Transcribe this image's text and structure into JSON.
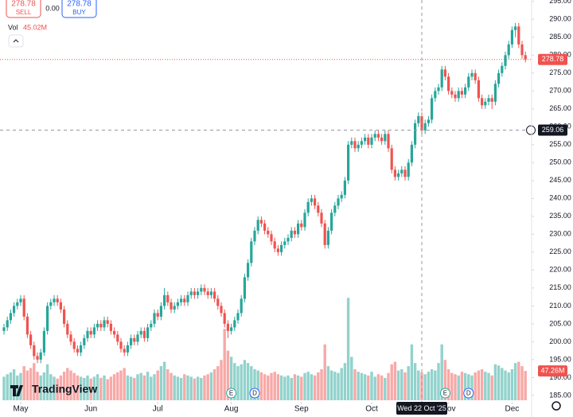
{
  "chart_data": {
    "type": "candlestick",
    "header": {
      "sell": 278.78,
      "sell_label": "SELL",
      "spread": "0.00",
      "buy": 278.78,
      "buy_label": "BUY",
      "vol_label": "Vol",
      "vol_value": "45.02M"
    },
    "brand": "TradingView",
    "up_color": "#26a69a",
    "down_color": "#ef5350",
    "ylim": [
      183.2,
      295.4
    ],
    "yticks": [
      {
        "value": 185,
        "label": "185.00"
      },
      {
        "value": 190,
        "label": "190.00"
      },
      {
        "value": 195,
        "label": "195.00"
      },
      {
        "value": 200,
        "label": "200.00"
      },
      {
        "value": 205,
        "label": "205.00"
      },
      {
        "value": 210,
        "label": "210.00"
      },
      {
        "value": 215,
        "label": "215.00"
      },
      {
        "value": 220,
        "label": "220.00"
      },
      {
        "value": 225,
        "label": "225.00"
      },
      {
        "value": 230,
        "label": "230.00"
      },
      {
        "value": 235,
        "label": "235.00"
      },
      {
        "value": 240,
        "label": "240.00"
      },
      {
        "value": 245,
        "label": "245.00"
      },
      {
        "value": 250,
        "label": "250.00"
      },
      {
        "value": 255,
        "label": "255.00"
      },
      {
        "value": 260,
        "label": "260.00"
      },
      {
        "value": 265,
        "label": "265.00"
      },
      {
        "value": 270,
        "label": "270.00"
      },
      {
        "value": 275,
        "label": "275.00"
      },
      {
        "value": 280,
        "label": "280.00"
      },
      {
        "value": 285,
        "label": "285.00"
      },
      {
        "value": 290,
        "label": "290.00"
      },
      {
        "value": 295,
        "label": "295.00"
      }
    ],
    "month_ticks": [
      {
        "value": 5,
        "label": "May"
      },
      {
        "value": 26,
        "label": "Jun"
      },
      {
        "value": 46,
        "label": "Jul"
      },
      {
        "value": 68,
        "label": "Aug"
      },
      {
        "value": 89,
        "label": "Sep"
      },
      {
        "value": 110,
        "label": "Oct"
      },
      {
        "value": 133,
        "label": "Nov"
      },
      {
        "value": 152,
        "label": "Dec"
      }
    ],
    "last_price": 278.78,
    "last_volume_label": "47.26M",
    "crosshair": {
      "price": 259.06,
      "index": 125,
      "date": "Wed 22 Oct '25"
    },
    "events": [
      {
        "index": 68,
        "label": "E"
      },
      {
        "index": 75,
        "label": "D"
      },
      {
        "index": 132,
        "label": "E"
      },
      {
        "index": 139,
        "label": "D"
      }
    ],
    "candles": [
      [
        203,
        205,
        202,
        204
      ],
      [
        204,
        207,
        203,
        206
      ],
      [
        206,
        209,
        205,
        208
      ],
      [
        208,
        211,
        207,
        210
      ],
      [
        210,
        212,
        209,
        211
      ],
      [
        211,
        213,
        210,
        212
      ],
      [
        212,
        213,
        206,
        207
      ],
      [
        207,
        208,
        201,
        202
      ],
      [
        202,
        203,
        198,
        199
      ],
      [
        199,
        200,
        195,
        196
      ],
      [
        196,
        197,
        194,
        195
      ],
      [
        195,
        198,
        194,
        197
      ],
      [
        197,
        204,
        196,
        203
      ],
      [
        203,
        211,
        202,
        210
      ],
      [
        210,
        212,
        209,
        211
      ],
      [
        211,
        213,
        210,
        212
      ],
      [
        212,
        213,
        210,
        211
      ],
      [
        211,
        212,
        208,
        209
      ],
      [
        209,
        210,
        204,
        205
      ],
      [
        205,
        206,
        201,
        202
      ],
      [
        202,
        203,
        199,
        200
      ],
      [
        200,
        201,
        197,
        198
      ],
      [
        198,
        199,
        196,
        197
      ],
      [
        197,
        200,
        196,
        199
      ],
      [
        199,
        202,
        198,
        201
      ],
      [
        201,
        204,
        200,
        203
      ],
      [
        203,
        204,
        201,
        202
      ],
      [
        202,
        205,
        201,
        204
      ],
      [
        204,
        206,
        203,
        205
      ],
      [
        205,
        206,
        203,
        204
      ],
      [
        204,
        207,
        203,
        206
      ],
      [
        206,
        207,
        204,
        205
      ],
      [
        205,
        206,
        202,
        203
      ],
      [
        203,
        204,
        201,
        202
      ],
      [
        202,
        203,
        199,
        200
      ],
      [
        200,
        201,
        197,
        198
      ],
      [
        198,
        199,
        196,
        197
      ],
      [
        197,
        200,
        196,
        199
      ],
      [
        199,
        202,
        198,
        201
      ],
      [
        201,
        202,
        199,
        200
      ],
      [
        200,
        203,
        199,
        202
      ],
      [
        202,
        204,
        201,
        203
      ],
      [
        203,
        204,
        200,
        201
      ],
      [
        201,
        205,
        200,
        204
      ],
      [
        204,
        206,
        203,
        205
      ],
      [
        205,
        209,
        204,
        208
      ],
      [
        208,
        209,
        206,
        207
      ],
      [
        207,
        211,
        206,
        210
      ],
      [
        210,
        215,
        209,
        213
      ],
      [
        213,
        214,
        210,
        211
      ],
      [
        211,
        212,
        208,
        209
      ],
      [
        209,
        211,
        208,
        210
      ],
      [
        210,
        212,
        209,
        211
      ],
      [
        211,
        213,
        210,
        212
      ],
      [
        212,
        213,
        210,
        211
      ],
      [
        211,
        214,
        210,
        213
      ],
      [
        213,
        215,
        212,
        214
      ],
      [
        214,
        215,
        212,
        213
      ],
      [
        213,
        215,
        212,
        214
      ],
      [
        214,
        216,
        213,
        215
      ],
      [
        215,
        216,
        213,
        214
      ],
      [
        214,
        215,
        212,
        213
      ],
      [
        213,
        215,
        212,
        214
      ],
      [
        214,
        215,
        211,
        212
      ],
      [
        212,
        213,
        209,
        210
      ],
      [
        210,
        211,
        207,
        208
      ],
      [
        208,
        209,
        204,
        205
      ],
      [
        205,
        206,
        201,
        203
      ],
      [
        203,
        205,
        202,
        204
      ],
      [
        204,
        207,
        203,
        206
      ],
      [
        206,
        209,
        205,
        208
      ],
      [
        208,
        213,
        207,
        212
      ],
      [
        212,
        219,
        211,
        218
      ],
      [
        218,
        223,
        217,
        222
      ],
      [
        222,
        229,
        221,
        228
      ],
      [
        228,
        232,
        227,
        231
      ],
      [
        231,
        235,
        230,
        234
      ],
      [
        234,
        235,
        232,
        233
      ],
      [
        233,
        234,
        230,
        231
      ],
      [
        231,
        232,
        229,
        230
      ],
      [
        230,
        231,
        227,
        228
      ],
      [
        228,
        229,
        225,
        226
      ],
      [
        226,
        227,
        224,
        225
      ],
      [
        225,
        228,
        224,
        227
      ],
      [
        227,
        229,
        226,
        228
      ],
      [
        228,
        230,
        227,
        229
      ],
      [
        229,
        232,
        228,
        231
      ],
      [
        231,
        232,
        229,
        230
      ],
      [
        230,
        234,
        229,
        233
      ],
      [
        233,
        234,
        231,
        232
      ],
      [
        232,
        237,
        231,
        236
      ],
      [
        236,
        240,
        235,
        239
      ],
      [
        239,
        241,
        238,
        240
      ],
      [
        240,
        241,
        237,
        238
      ],
      [
        238,
        239,
        235,
        236
      ],
      [
        236,
        237,
        232,
        233
      ],
      [
        233,
        234,
        226,
        227
      ],
      [
        227,
        232,
        226,
        231
      ],
      [
        231,
        237,
        230,
        236
      ],
      [
        236,
        239,
        235,
        238
      ],
      [
        238,
        241,
        237,
        240
      ],
      [
        240,
        242,
        239,
        241
      ],
      [
        241,
        246,
        240,
        245
      ],
      [
        245,
        256,
        244,
        255
      ],
      [
        255,
        257,
        254,
        256
      ],
      [
        256,
        257,
        253,
        254
      ],
      [
        254,
        256,
        253,
        255
      ],
      [
        255,
        257,
        254,
        256
      ],
      [
        256,
        258,
        255,
        257
      ],
      [
        257,
        258,
        254,
        255
      ],
      [
        255,
        258,
        254,
        257
      ],
      [
        257,
        259,
        256,
        258
      ],
      [
        258,
        259,
        256,
        257
      ],
      [
        257,
        258,
        255,
        256
      ],
      [
        256,
        259,
        255,
        258
      ],
      [
        258,
        259,
        253,
        254
      ],
      [
        254,
        255,
        247,
        248
      ],
      [
        248,
        249,
        245,
        246
      ],
      [
        246,
        248,
        245,
        247
      ],
      [
        247,
        249,
        246,
        248
      ],
      [
        248,
        249,
        245,
        246
      ],
      [
        246,
        251,
        245,
        250
      ],
      [
        250,
        256,
        249,
        255
      ],
      [
        255,
        262,
        254,
        261
      ],
      [
        261,
        264,
        260,
        263
      ],
      [
        263,
        264,
        258,
        259
      ],
      [
        259,
        262,
        258,
        261
      ],
      [
        261,
        263,
        260,
        262
      ],
      [
        262,
        269,
        261,
        268
      ],
      [
        268,
        271,
        267,
        270
      ],
      [
        270,
        272,
        269,
        271
      ],
      [
        271,
        277,
        270,
        276
      ],
      [
        276,
        277,
        273,
        274
      ],
      [
        274,
        275,
        269,
        270
      ],
      [
        270,
        271,
        268,
        269
      ],
      [
        269,
        270,
        267,
        268
      ],
      [
        268,
        271,
        267,
        270
      ],
      [
        270,
        271,
        268,
        269
      ],
      [
        269,
        272,
        268,
        271
      ],
      [
        271,
        275,
        270,
        274
      ],
      [
        274,
        276,
        273,
        275
      ],
      [
        275,
        276,
        272,
        273
      ],
      [
        273,
        274,
        267,
        268
      ],
      [
        268,
        269,
        265,
        266
      ],
      [
        266,
        268,
        265,
        267
      ],
      [
        267,
        269,
        266,
        268
      ],
      [
        268,
        269,
        265,
        267
      ],
      [
        267,
        273,
        266,
        272
      ],
      [
        272,
        276,
        271,
        275
      ],
      [
        275,
        278,
        274,
        277
      ],
      [
        277,
        281,
        276,
        280
      ],
      [
        280,
        284,
        279,
        283
      ],
      [
        283,
        288,
        282,
        287
      ],
      [
        287,
        289,
        285,
        288
      ],
      [
        288,
        289,
        282,
        283
      ],
      [
        283,
        284,
        279,
        280
      ],
      [
        280,
        281,
        278,
        278.78
      ]
    ],
    "volume": [
      38,
      42,
      45,
      50,
      40,
      44,
      55,
      48,
      52,
      60,
      46,
      40,
      45,
      58,
      42,
      38,
      35,
      40,
      46,
      52,
      48,
      44,
      40,
      38,
      36,
      40,
      35,
      38,
      42,
      36,
      40,
      34,
      38,
      42,
      45,
      48,
      52,
      40,
      38,
      36,
      42,
      44,
      40,
      46,
      38,
      42,
      48,
      55,
      62,
      50,
      44,
      40,
      38,
      36,
      42,
      40,
      38,
      35,
      38,
      36,
      40,
      42,
      45,
      50,
      55,
      65,
      115,
      80,
      70,
      60,
      55,
      58,
      65,
      60,
      55,
      50,
      48,
      45,
      42,
      40,
      44,
      46,
      42,
      40,
      38,
      40,
      36,
      42,
      40,
      38,
      44,
      46,
      42,
      40,
      45,
      50,
      90,
      55,
      48,
      46,
      44,
      52,
      60,
      165,
      70,
      50,
      46,
      44,
      42,
      40,
      46,
      38,
      42,
      40,
      36,
      44,
      58,
      62,
      48,
      50,
      45,
      55,
      90,
      60,
      48,
      45,
      42,
      46,
      50,
      48,
      60,
      90,
      65,
      50,
      44,
      42,
      40,
      46,
      44,
      42,
      40,
      45,
      48,
      50,
      46,
      44,
      40,
      58,
      56,
      52,
      48,
      45,
      50,
      60,
      62,
      55,
      47.26
    ]
  }
}
